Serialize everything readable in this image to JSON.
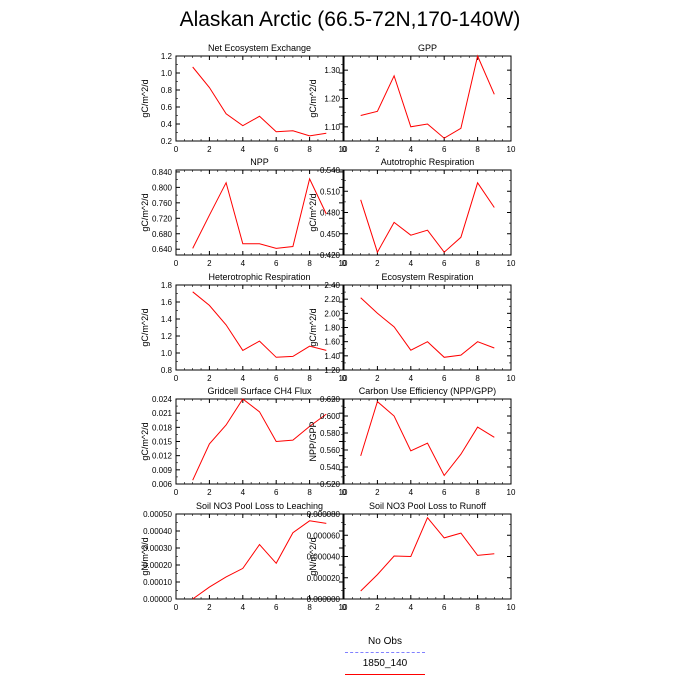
{
  "title": "Alaskan Arctic (66.5-72N,170-140W)",
  "colors": {
    "series": "#ff0000",
    "obs": "#8080ff",
    "axis": "#000000"
  },
  "legend": [
    {
      "label": "No Obs",
      "color": "#8080ff",
      "style": "dashed"
    },
    {
      "label": "1850_140",
      "color": "#ff0000",
      "style": "solid"
    }
  ],
  "chart_data": [
    {
      "type": "line",
      "title": "Net Ecosystem Exchange",
      "ylabel": "gC/m^2/d",
      "xlim": [
        0,
        10
      ],
      "ylim": [
        0.2,
        1.2
      ],
      "xticks": [
        "0",
        "2",
        "4",
        "6",
        "8",
        "10"
      ],
      "yticks": [
        0.2,
        0.4,
        0.6,
        0.8,
        1.0,
        1.2
      ],
      "yticklabels": [
        "0.2",
        "0.4",
        "0.6",
        "0.8",
        "1.0",
        "1.2"
      ],
      "x": [
        1,
        2,
        3,
        4,
        5,
        6,
        7,
        8,
        9
      ],
      "series": [
        {
          "name": "1850_140",
          "values": [
            1.07,
            0.83,
            0.52,
            0.38,
            0.49,
            0.31,
            0.32,
            0.26,
            0.29
          ]
        }
      ]
    },
    {
      "type": "line",
      "title": "GPP",
      "ylabel": "gC/m^2/d",
      "xlim": [
        0,
        10
      ],
      "ylim": [
        1.05,
        1.35
      ],
      "xticks": [
        "0",
        "2",
        "4",
        "6",
        "8",
        "10"
      ],
      "yticks": [
        1.1,
        1.2,
        1.3
      ],
      "yticklabels": [
        "1.10",
        "1.20",
        "1.30"
      ],
      "x": [
        1,
        2,
        3,
        4,
        5,
        6,
        7,
        8,
        9
      ],
      "series": [
        {
          "name": "1850_140",
          "values": [
            1.14,
            1.155,
            1.28,
            1.1,
            1.11,
            1.06,
            1.095,
            1.35,
            1.215
          ]
        }
      ]
    },
    {
      "type": "line",
      "title": "NPP",
      "ylabel": "gC/m^2/d",
      "xlim": [
        0,
        10
      ],
      "ylim": [
        0.625,
        0.845
      ],
      "xticks": [
        "0",
        "2",
        "4",
        "6",
        "8",
        "10"
      ],
      "yticks": [
        0.64,
        0.68,
        0.72,
        0.76,
        0.8,
        0.84
      ],
      "yticklabels": [
        "0.640",
        "0.680",
        "0.720",
        "0.760",
        "0.800",
        "0.840"
      ],
      "x": [
        1,
        2,
        3,
        4,
        5,
        6,
        7,
        8,
        9
      ],
      "series": [
        {
          "name": "1850_140",
          "values": [
            0.642,
            0.728,
            0.812,
            0.654,
            0.654,
            0.642,
            0.647,
            0.822,
            0.731
          ]
        }
      ]
    },
    {
      "type": "line",
      "title": "Autotrophic Respiration",
      "ylabel": "gC/m^2/d",
      "xlim": [
        0,
        10
      ],
      "ylim": [
        0.42,
        0.54
      ],
      "xticks": [
        "0",
        "2",
        "4",
        "6",
        "8",
        "10"
      ],
      "yticks": [
        0.42,
        0.45,
        0.48,
        0.51,
        0.54
      ],
      "yticklabels": [
        "0.420",
        "0.450",
        "0.480",
        "0.510",
        "0.540"
      ],
      "x": [
        1,
        2,
        3,
        4,
        5,
        6,
        7,
        8,
        9
      ],
      "series": [
        {
          "name": "1850_140",
          "values": [
            0.498,
            0.424,
            0.466,
            0.448,
            0.455,
            0.424,
            0.445,
            0.522,
            0.487
          ]
        }
      ]
    },
    {
      "type": "line",
      "title": "Heterotrophic Respiration",
      "ylabel": "gC/m^2/d",
      "xlim": [
        0,
        10
      ],
      "ylim": [
        0.8,
        1.8
      ],
      "xticks": [
        "0",
        "2",
        "4",
        "6",
        "8",
        "10"
      ],
      "yticks": [
        0.8,
        1.0,
        1.2,
        1.4,
        1.6,
        1.8
      ],
      "yticklabels": [
        "0.8",
        "1.0",
        "1.2",
        "1.4",
        "1.6",
        "1.8"
      ],
      "x": [
        1,
        2,
        3,
        4,
        5,
        6,
        7,
        8,
        9
      ],
      "series": [
        {
          "name": "1850_140",
          "values": [
            1.72,
            1.56,
            1.33,
            1.03,
            1.14,
            0.95,
            0.96,
            1.08,
            1.03
          ]
        }
      ]
    },
    {
      "type": "line",
      "title": "Ecosystem Respiration",
      "ylabel": "gC/m^2/d",
      "xlim": [
        0,
        10
      ],
      "ylim": [
        1.2,
        2.4
      ],
      "xticks": [
        "0",
        "2",
        "4",
        "6",
        "8",
        "10"
      ],
      "yticks": [
        1.2,
        1.4,
        1.6,
        1.8,
        2.0,
        2.2,
        2.4
      ],
      "yticklabels": [
        "1.20",
        "1.40",
        "1.60",
        "1.80",
        "2.00",
        "2.20",
        "2.40"
      ],
      "x": [
        1,
        2,
        3,
        4,
        5,
        6,
        7,
        8,
        9
      ],
      "series": [
        {
          "name": "1850_140",
          "values": [
            2.22,
            2.0,
            1.81,
            1.48,
            1.6,
            1.38,
            1.41,
            1.6,
            1.51
          ]
        }
      ]
    },
    {
      "type": "line",
      "title": "Gridcell Surface CH4 Flux",
      "ylabel": "gC/m^2/d",
      "xlim": [
        0,
        10
      ],
      "ylim": [
        0.006,
        0.024
      ],
      "xticks": [
        "0",
        "2",
        "4",
        "6",
        "8",
        "10"
      ],
      "yticks": [
        0.006,
        0.009,
        0.012,
        0.015,
        0.018,
        0.021,
        0.024
      ],
      "yticklabels": [
        "0.006",
        "0.009",
        "0.012",
        "0.015",
        "0.018",
        "0.021",
        "0.024"
      ],
      "x": [
        1,
        2,
        3,
        4,
        5,
        6,
        7,
        8,
        9
      ],
      "series": [
        {
          "name": "1850_140",
          "values": [
            0.0068,
            0.0145,
            0.0185,
            0.024,
            0.0213,
            0.015,
            0.0153,
            0.0182,
            0.0208
          ]
        }
      ]
    },
    {
      "type": "line",
      "title": "Carbon Use Efficiency (NPP/GPP)",
      "ylabel": "NPP/GPP",
      "xlim": [
        0,
        10
      ],
      "ylim": [
        0.52,
        0.62
      ],
      "xticks": [
        "0",
        "2",
        "4",
        "6",
        "8",
        "10"
      ],
      "yticks": [
        0.52,
        0.54,
        0.56,
        0.58,
        0.6,
        0.62
      ],
      "yticklabels": [
        "0.520",
        "0.540",
        "0.560",
        "0.580",
        "0.600",
        "0.620"
      ],
      "x": [
        1,
        2,
        3,
        4,
        5,
        6,
        7,
        8,
        9
      ],
      "series": [
        {
          "name": "1850_140",
          "values": [
            0.553,
            0.617,
            0.6,
            0.559,
            0.568,
            0.53,
            0.555,
            0.587,
            0.575
          ]
        }
      ]
    },
    {
      "type": "line",
      "title": "Soil NO3 Pool Loss to Leaching",
      "ylabel": "gN/m^2/d",
      "xlim": [
        0,
        10
      ],
      "ylim": [
        0,
        0.0005
      ],
      "xticks": [
        "0",
        "2",
        "4",
        "6",
        "8",
        "10"
      ],
      "yticks": [
        0,
        0.0001,
        0.0002,
        0.0003,
        0.0004,
        0.0005
      ],
      "yticklabels": [
        "0.00000",
        "0.00010",
        "0.00020",
        "0.00030",
        "0.00040",
        "0.00050"
      ],
      "x": [
        1,
        2,
        3,
        4,
        5,
        6,
        7,
        8,
        9
      ],
      "series": [
        {
          "name": "1850_140",
          "values": [
            0.0,
            7e-05,
            0.00013,
            0.00018,
            0.00032,
            0.00021,
            0.00039,
            0.00046,
            0.000445
          ]
        }
      ]
    },
    {
      "type": "line",
      "title": "Soil NO3 Pool Loss to Runoff",
      "ylabel": "gN/m^2/d",
      "xlim": [
        0,
        10
      ],
      "ylim": [
        0,
        8e-05
      ],
      "xticks": [
        "0",
        "2",
        "4",
        "6",
        "8",
        "10"
      ],
      "yticks": [
        0,
        2e-05,
        4e-05,
        6e-05,
        8e-05
      ],
      "yticklabels": [
        "0.000000",
        "0.000020",
        "0.000040",
        "0.000060",
        "0.000080"
      ],
      "x": [
        1,
        2,
        3,
        4,
        5,
        6,
        7,
        8,
        9
      ],
      "series": [
        {
          "name": "1850_140",
          "values": [
            7.5e-06,
            2.3e-05,
            4.05e-05,
            4e-05,
            7.65e-05,
            5.75e-05,
            6.2e-05,
            4.1e-05,
            4.25e-05
          ]
        }
      ]
    }
  ]
}
